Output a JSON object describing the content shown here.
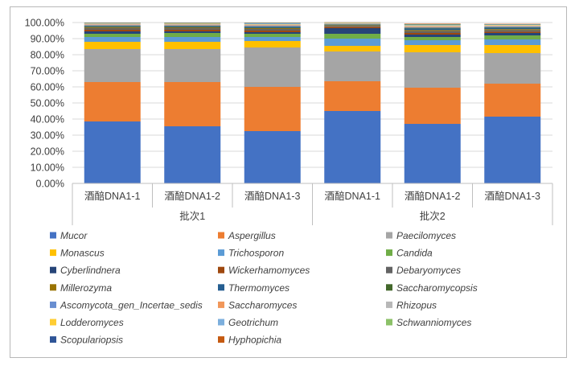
{
  "chart_data": {
    "type": "stacked-bar-100",
    "y_ticks": [
      "0.00%",
      "10.00%",
      "20.00%",
      "30.00%",
      "40.00%",
      "50.00%",
      "60.00%",
      "70.00%",
      "80.00%",
      "90.00%",
      "100.00%"
    ],
    "ylim": [
      0,
      100
    ],
    "grid": true,
    "legend_position": "bottom",
    "categories": [
      "酒醅DNA1-1",
      "酒醅DNA1-2",
      "酒醅DNA1-3",
      "酒醅DNA1-1",
      "酒醅DNA1-2",
      "酒醅DNA1-3"
    ],
    "groups": [
      {
        "label": "批次1",
        "span": [
          0,
          2
        ]
      },
      {
        "label": "批次2",
        "span": [
          3,
          5
        ]
      }
    ],
    "series": [
      {
        "name": "Mucor",
        "color": "#4472C4",
        "values": [
          38.5,
          35.5,
          32.5,
          45.0,
          37.0,
          41.5
        ]
      },
      {
        "name": "Aspergillus",
        "color": "#ED7D31",
        "values": [
          24.5,
          27.5,
          27.5,
          18.5,
          22.5,
          20.5
        ]
      },
      {
        "name": "Paecilomyces",
        "color": "#A5A5A5",
        "values": [
          20.5,
          20.5,
          24.5,
          18.5,
          22.0,
          19.0
        ]
      },
      {
        "name": "Monascus",
        "color": "#FFC000",
        "values": [
          4.5,
          4.5,
          4.0,
          3.5,
          4.5,
          5.0
        ]
      },
      {
        "name": "Trichosporon",
        "color": "#5B9BD5",
        "values": [
          3.0,
          3.0,
          2.5,
          4.5,
          3.0,
          3.5
        ]
      },
      {
        "name": "Candida",
        "color": "#70AD47",
        "values": [
          2.0,
          2.5,
          2.0,
          3.0,
          2.0,
          2.5
        ]
      },
      {
        "name": "Cyberlindnera",
        "color": "#264478",
        "values": [
          1.5,
          1.0,
          1.0,
          3.5,
          1.5,
          1.5
        ]
      },
      {
        "name": "Wickerhamomyces",
        "color": "#9E480E",
        "values": [
          1.0,
          1.0,
          1.0,
          0.8,
          1.0,
          0.8
        ]
      },
      {
        "name": "Debaryomyces",
        "color": "#636363",
        "values": [
          1.0,
          1.0,
          1.0,
          0.6,
          1.2,
          1.0
        ]
      },
      {
        "name": "Millerozyma",
        "color": "#997300",
        "values": [
          0.6,
          0.5,
          0.5,
          0.4,
          0.6,
          0.6
        ]
      },
      {
        "name": "Thermomyces",
        "color": "#255E91",
        "values": [
          0.5,
          0.5,
          0.5,
          0.3,
          1.0,
          0.8
        ]
      },
      {
        "name": "Saccharomycopsis",
        "color": "#43682B",
        "values": [
          0.4,
          0.4,
          0.4,
          0.3,
          0.4,
          0.4
        ]
      },
      {
        "name": "Ascomycota_gen_Incertae_sedis",
        "color": "#698ED0",
        "values": [
          0.4,
          0.4,
          0.6,
          0.3,
          0.4,
          0.4
        ]
      },
      {
        "name": "Saccharomyces",
        "color": "#F1975A",
        "values": [
          0.4,
          0.4,
          0.4,
          0.2,
          0.4,
          0.3
        ]
      },
      {
        "name": "Rhizopus",
        "color": "#B7B7B7",
        "values": [
          0.3,
          0.3,
          0.4,
          0.2,
          0.4,
          0.3
        ]
      },
      {
        "name": "Lodderomyces",
        "color": "#FFCD33",
        "values": [
          0.2,
          0.3,
          0.2,
          0.2,
          0.3,
          0.3
        ]
      },
      {
        "name": "Geotrichum",
        "color": "#7CAFDD",
        "values": [
          0.2,
          0.2,
          0.5,
          0.1,
          0.3,
          0.2
        ]
      },
      {
        "name": "Schwanniomyces",
        "color": "#8CC168",
        "values": [
          0.2,
          0.2,
          0.2,
          0.1,
          0.3,
          0.2
        ]
      },
      {
        "name": "Scopulariopsis",
        "color": "#2F5597",
        "values": [
          0.2,
          0.2,
          0.2,
          0.1,
          0.2,
          0.2
        ]
      },
      {
        "name": "Hyphopichia",
        "color": "#C55A11",
        "values": [
          0.1,
          0.1,
          0.1,
          0.1,
          0.3,
          0.2
        ]
      }
    ]
  }
}
